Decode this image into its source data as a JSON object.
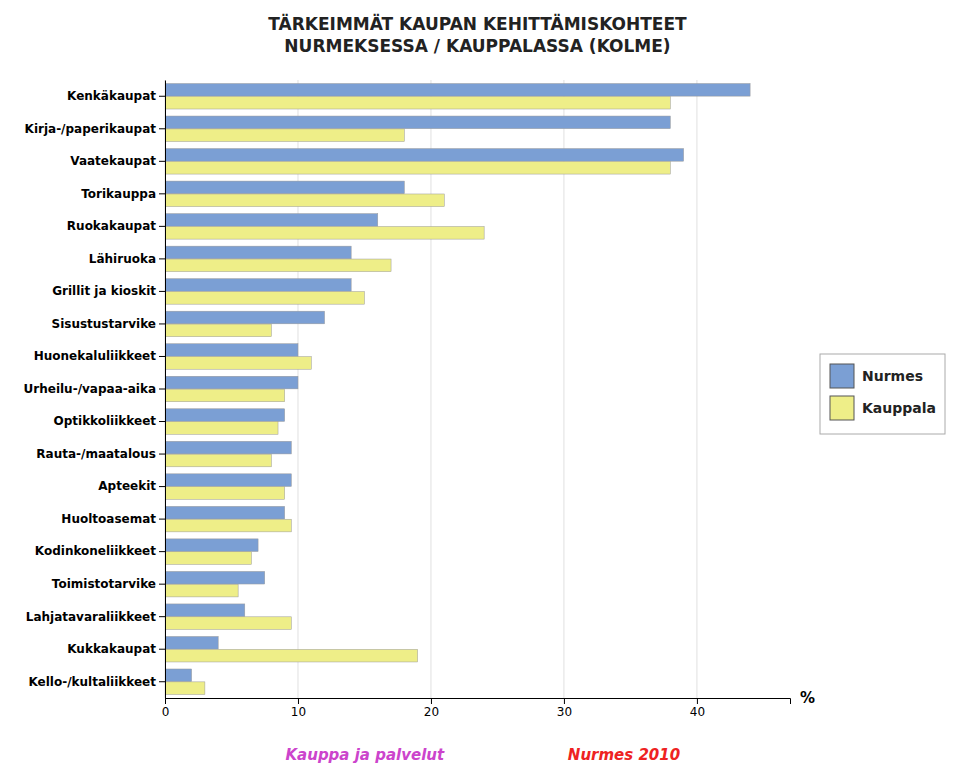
{
  "chart_data": {
    "type": "bar",
    "orientation": "horizontal",
    "title": "TÄRKEIMMÄT KAUPAN KEHITTÄMISKOHTEET\nNURMEKSESSA / KAUPPALASSA (KOLME)",
    "x_label": "%",
    "categories": [
      "Kenkäkaupat",
      "Kirja-/paperikaupat",
      "Vaatekaupat",
      "Torikauppa",
      "Ruokakaupat",
      "Lähiruoka",
      "Grillit ja kioskit",
      "Sisustustarvike",
      "Huonekaluliikkeet",
      "Urheilu-/vapaa-aika",
      "Optikkoliikkeet",
      "Rauta-/maatalous",
      "Apteekit",
      "Huoltoasemat",
      "Kodinkoneliikkeet",
      "Toimistotarvike",
      "Lahjatavaraliikkeet",
      "Kukkakaupat",
      "Kello-/kultaliikkeet"
    ],
    "series": [
      {
        "name": "Nurmes",
        "color": "#7b9fd4",
        "values": [
          44,
          38,
          39,
          18,
          16,
          14,
          14,
          12,
          10,
          10,
          9,
          9.5,
          9.5,
          9,
          7,
          7.5,
          6,
          4,
          2
        ]
      },
      {
        "name": "Kauppala",
        "color": "#eeee88",
        "values": [
          38,
          18,
          38,
          21,
          24,
          17,
          15,
          8,
          11,
          9,
          8.5,
          8,
          9,
          9.5,
          6.5,
          5.5,
          9.5,
          19,
          3
        ]
      }
    ],
    "xlim": [
      0,
      47
    ],
    "xticks": [
      0,
      10,
      20,
      30,
      40
    ],
    "grid": true,
    "legend": "right",
    "annotations": [
      {
        "text": "Kauppa ja palvelut",
        "color": "#cc44cc"
      },
      {
        "text": "Nurmes 2010",
        "color": "#ee2222"
      }
    ]
  }
}
